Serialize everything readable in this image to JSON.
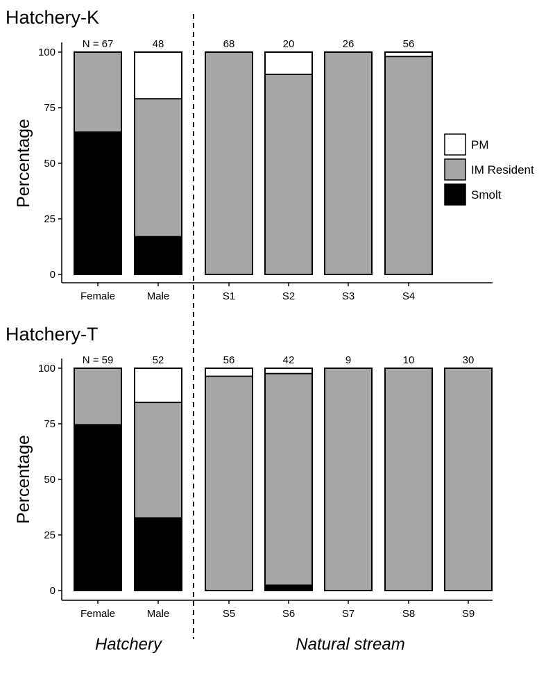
{
  "chart_data": [
    {
      "type": "bar",
      "stacked": true,
      "title": "Hatchery-K",
      "ylabel": "Percentage",
      "xlabel": "",
      "ylim": [
        0,
        100
      ],
      "yticks": [
        0,
        25,
        50,
        75,
        100
      ],
      "categories": [
        "Female",
        "Male",
        "S1",
        "S2",
        "S3",
        "S4"
      ],
      "n_labels": [
        "N = 67",
        "48",
        "68",
        "20",
        "26",
        "56"
      ],
      "series": [
        {
          "name": "Smolt",
          "color": "#000000",
          "values": [
            64,
            17,
            0,
            0,
            0,
            0
          ]
        },
        {
          "name": "IM Resident",
          "color": "#a6a6a6",
          "values": [
            36,
            62,
            100,
            90,
            100,
            98
          ]
        },
        {
          "name": "PM",
          "color": "#ffffff",
          "values": [
            0,
            21,
            0,
            10,
            0,
            2
          ]
        }
      ]
    },
    {
      "type": "bar",
      "stacked": true,
      "title": "Hatchery-T",
      "ylabel": "Percentage",
      "xlabel": "",
      "ylim": [
        0,
        100
      ],
      "yticks": [
        0,
        25,
        50,
        75,
        100
      ],
      "categories": [
        "Female",
        "Male",
        "S5",
        "S6",
        "S7",
        "S8",
        "S9"
      ],
      "n_labels": [
        "N = 59",
        "52",
        "56",
        "42",
        "9",
        "10",
        "30"
      ],
      "series": [
        {
          "name": "Smolt",
          "color": "#000000",
          "values": [
            74.6,
            32.7,
            0,
            2.4,
            0,
            0,
            0
          ]
        },
        {
          "name": "IM Resident",
          "color": "#a6a6a6",
          "values": [
            25.4,
            51.9,
            96.4,
            95.2,
            100,
            100,
            100
          ]
        },
        {
          "name": "PM",
          "color": "#ffffff",
          "values": [
            0,
            15.4,
            3.6,
            2.4,
            0,
            0,
            0
          ]
        }
      ]
    }
  ],
  "legend": {
    "position": "right",
    "items": [
      {
        "label": "PM",
        "color": "#ffffff"
      },
      {
        "label": "IM Resident",
        "color": "#a6a6a6"
      },
      {
        "label": "Smolt",
        "color": "#000000"
      }
    ]
  },
  "group_labels": {
    "hatchery": "Hatchery",
    "natural": "Natural stream"
  }
}
